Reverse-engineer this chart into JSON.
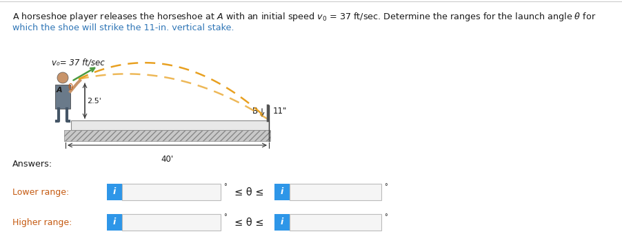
{
  "bg_color": "#ffffff",
  "text_color_blue": "#2E75B6",
  "text_color_orange": "#C55A11",
  "text_color_black": "#1a1a1a",
  "box_border_color": "#BBBBBB",
  "box_fill_color": "#f5f5f5",
  "icon_bg_color": "#2E96E8",
  "icon_text_color": "#ffffff",
  "ground_color": "#E8E8E8",
  "ground_edge_color": "#888888",
  "traj_color": "#E8A020",
  "stake_color": "#555555",
  "vo_label": "v₀= 37 ft/sec",
  "angle_label": "θ",
  "height_label": "2.5'",
  "stake_height_label": "11\"",
  "B_label": "B",
  "dist_label": "40'",
  "answers_label": "Answers:",
  "lower_label": "Lower range:",
  "higher_label": "Higher range:",
  "leq_theta_leq": "≤ θ ≤",
  "degree_symbol": "°",
  "info_icon": "i",
  "title_line1_black": "A horseshoe player releases the horseshoe at ",
  "title_A": "A",
  "title_line1_b": " with an initial speed v₀ = 37 ft/sec. Determine the ranges for the launch angle θ for",
  "title_line2": "which the shoe will strike the 11-in. vertical stake.",
  "arrow_color": "#4a9a40",
  "person_body_color": "#7a5535",
  "person_skin_color": "#c8946a",
  "person_shirt_color": "#6a7a8a",
  "person_pants_color": "#5a6a7a",
  "dim_line_color": "#333333"
}
